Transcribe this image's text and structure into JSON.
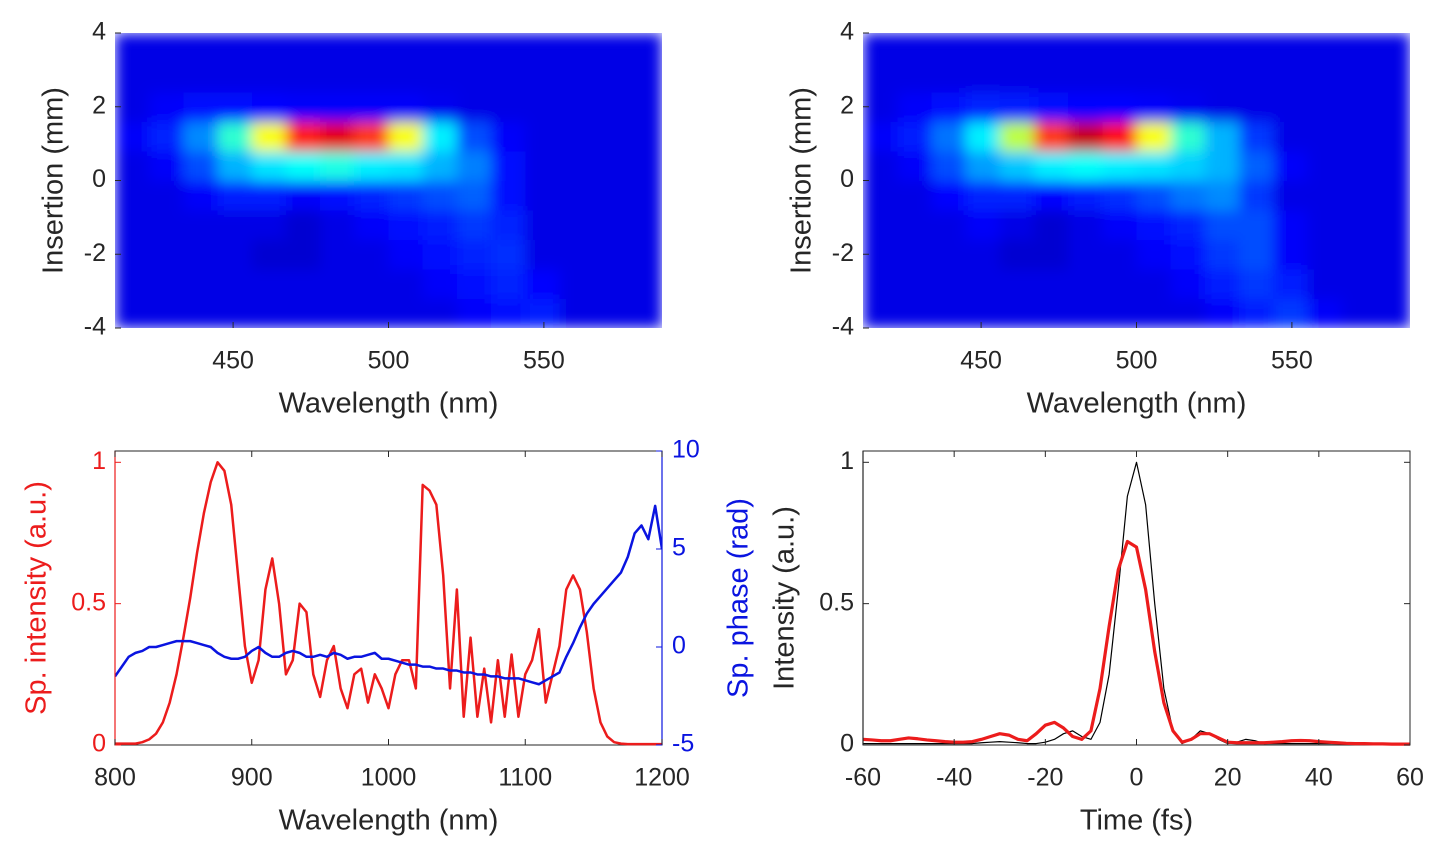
{
  "chart_data": [
    {
      "type": "heatmap",
      "colormap": "jet",
      "xlabel": "Wavelength (nm)",
      "ylabel": "Insertion (mm)",
      "xlim": [
        412,
        588
      ],
      "ylim": [
        -4,
        4
      ],
      "xticks": [
        450,
        500,
        550
      ],
      "yticks": [
        -4,
        -2,
        0,
        2,
        4
      ],
      "xbins": [
        412,
        423,
        434,
        445,
        456,
        467,
        478,
        489,
        500,
        511,
        522,
        533,
        544,
        555,
        566,
        577,
        588
      ],
      "ybins": [
        -4,
        -3.2,
        -2.4,
        -1.6,
        -0.8,
        0,
        0.8,
        1.6,
        2.4,
        3.2,
        4
      ],
      "values": [
        [
          0.1,
          0.1,
          0.1,
          0.1,
          0.1,
          0.1,
          0.1,
          0.1,
          0.1,
          0.1,
          0.12,
          0.14,
          0.15,
          0.1,
          0.1,
          0.1
        ],
        [
          0.1,
          0.1,
          0.1,
          0.1,
          0.1,
          0.1,
          0.1,
          0.1,
          0.1,
          0.12,
          0.14,
          0.16,
          0.13,
          0.1,
          0.1,
          0.1
        ],
        [
          0.1,
          0.1,
          0.1,
          0.1,
          0.08,
          0.08,
          0.1,
          0.1,
          0.12,
          0.14,
          0.16,
          0.17,
          0.1,
          0.1,
          0.1,
          0.1
        ],
        [
          0.1,
          0.1,
          0.1,
          0.1,
          0.1,
          0.08,
          0.1,
          0.12,
          0.14,
          0.15,
          0.18,
          0.16,
          0.1,
          0.1,
          0.1,
          0.1
        ],
        [
          0.1,
          0.1,
          0.12,
          0.15,
          0.15,
          0.12,
          0.14,
          0.16,
          0.18,
          0.2,
          0.22,
          0.14,
          0.1,
          0.1,
          0.1,
          0.1
        ],
        [
          0.1,
          0.12,
          0.2,
          0.3,
          0.35,
          0.38,
          0.4,
          0.36,
          0.35,
          0.3,
          0.25,
          0.14,
          0.1,
          0.1,
          0.1,
          0.1
        ],
        [
          0.12,
          0.16,
          0.26,
          0.42,
          0.62,
          0.85,
          0.9,
          0.82,
          0.62,
          0.36,
          0.2,
          0.12,
          0.1,
          0.1,
          0.1,
          0.1
        ],
        [
          0.1,
          0.12,
          0.14,
          0.14,
          0.13,
          0.12,
          0.12,
          0.12,
          0.12,
          0.11,
          0.1,
          0.1,
          0.1,
          0.1,
          0.1,
          0.1
        ],
        [
          0.1,
          0.1,
          0.1,
          0.1,
          0.1,
          0.1,
          0.1,
          0.1,
          0.1,
          0.1,
          0.1,
          0.1,
          0.1,
          0.1,
          0.1,
          0.1
        ],
        [
          0.1,
          0.1,
          0.1,
          0.1,
          0.1,
          0.1,
          0.1,
          0.1,
          0.1,
          0.1,
          0.1,
          0.1,
          0.1,
          0.1,
          0.1,
          0.1
        ]
      ]
    },
    {
      "type": "heatmap",
      "colormap": "jet",
      "xlabel": "Wavelength (nm)",
      "ylabel": "Insertion (mm)",
      "xlim": [
        412,
        588
      ],
      "ylim": [
        -4,
        4
      ],
      "xticks": [
        450,
        500,
        550
      ],
      "yticks": [
        -4,
        -2,
        0,
        2,
        4
      ],
      "xbins": [
        412,
        423,
        434,
        445,
        456,
        467,
        478,
        489,
        500,
        511,
        522,
        533,
        544,
        555,
        566,
        577,
        588
      ],
      "ybins": [
        -4,
        -3.2,
        -2.4,
        -1.6,
        -0.8,
        0,
        0.8,
        1.6,
        2.4,
        3.2,
        4
      ],
      "values": [
        [
          0.1,
          0.1,
          0.1,
          0.1,
          0.1,
          0.1,
          0.1,
          0.1,
          0.1,
          0.1,
          0.12,
          0.15,
          0.18,
          0.12,
          0.1,
          0.1
        ],
        [
          0.1,
          0.1,
          0.1,
          0.1,
          0.1,
          0.1,
          0.1,
          0.1,
          0.1,
          0.12,
          0.15,
          0.18,
          0.15,
          0.1,
          0.1,
          0.1
        ],
        [
          0.1,
          0.1,
          0.1,
          0.1,
          0.08,
          0.08,
          0.1,
          0.1,
          0.12,
          0.14,
          0.18,
          0.2,
          0.12,
          0.1,
          0.1,
          0.1
        ],
        [
          0.1,
          0.1,
          0.1,
          0.12,
          0.1,
          0.08,
          0.1,
          0.12,
          0.14,
          0.16,
          0.2,
          0.2,
          0.12,
          0.1,
          0.1,
          0.1
        ],
        [
          0.1,
          0.1,
          0.13,
          0.16,
          0.16,
          0.13,
          0.15,
          0.17,
          0.2,
          0.24,
          0.26,
          0.18,
          0.1,
          0.1,
          0.1,
          0.1
        ],
        [
          0.1,
          0.12,
          0.2,
          0.28,
          0.32,
          0.36,
          0.38,
          0.36,
          0.35,
          0.33,
          0.3,
          0.22,
          0.12,
          0.1,
          0.1,
          0.1
        ],
        [
          0.12,
          0.15,
          0.24,
          0.36,
          0.56,
          0.82,
          0.93,
          0.86,
          0.62,
          0.42,
          0.3,
          0.18,
          0.1,
          0.1,
          0.1,
          0.1
        ],
        [
          0.1,
          0.12,
          0.14,
          0.16,
          0.15,
          0.14,
          0.13,
          0.13,
          0.12,
          0.11,
          0.1,
          0.1,
          0.1,
          0.1,
          0.1,
          0.1
        ],
        [
          0.1,
          0.1,
          0.1,
          0.1,
          0.1,
          0.1,
          0.1,
          0.1,
          0.1,
          0.1,
          0.1,
          0.1,
          0.1,
          0.1,
          0.1,
          0.1
        ],
        [
          0.1,
          0.1,
          0.1,
          0.1,
          0.1,
          0.1,
          0.1,
          0.1,
          0.1,
          0.1,
          0.1,
          0.1,
          0.1,
          0.1,
          0.1,
          0.1
        ]
      ]
    },
    {
      "type": "line",
      "xlabel": "Wavelength (nm)",
      "ylabel": "Sp. intensity (a.u.)",
      "y2label": "Sp. phase (rad)",
      "xlim": [
        800,
        1200
      ],
      "ylim": [
        0,
        1.04
      ],
      "y2lim": [
        -5,
        10
      ],
      "xticks": [
        800,
        900,
        1000,
        1100,
        1200
      ],
      "yticks": [
        0,
        0.5,
        1
      ],
      "y2ticks": [
        -5,
        0,
        5,
        10
      ],
      "x": [
        800,
        805,
        810,
        815,
        820,
        825,
        830,
        835,
        840,
        845,
        850,
        855,
        860,
        865,
        870,
        875,
        880,
        885,
        890,
        895,
        900,
        905,
        910,
        915,
        920,
        925,
        930,
        935,
        940,
        945,
        950,
        955,
        960,
        965,
        970,
        975,
        980,
        985,
        990,
        995,
        1000,
        1005,
        1010,
        1015,
        1020,
        1025,
        1030,
        1035,
        1040,
        1045,
        1050,
        1055,
        1060,
        1065,
        1070,
        1075,
        1080,
        1085,
        1090,
        1095,
        1100,
        1105,
        1110,
        1115,
        1120,
        1125,
        1130,
        1135,
        1140,
        1145,
        1150,
        1155,
        1160,
        1165,
        1170,
        1175,
        1180,
        1185,
        1190,
        1195,
        1200
      ],
      "series": [
        {
          "color": "#ec1c1c",
          "linewidth": 2.5,
          "values": [
            0.005,
            0.005,
            0.005,
            0.005,
            0.01,
            0.02,
            0.04,
            0.08,
            0.15,
            0.25,
            0.38,
            0.52,
            0.68,
            0.82,
            0.93,
            1.0,
            0.97,
            0.85,
            0.6,
            0.35,
            0.22,
            0.3,
            0.55,
            0.66,
            0.5,
            0.25,
            0.3,
            0.5,
            0.47,
            0.25,
            0.17,
            0.3,
            0.35,
            0.2,
            0.13,
            0.25,
            0.27,
            0.15,
            0.25,
            0.2,
            0.13,
            0.25,
            0.3,
            0.3,
            0.2,
            0.92,
            0.9,
            0.85,
            0.6,
            0.2,
            0.55,
            0.1,
            0.38,
            0.1,
            0.27,
            0.08,
            0.3,
            0.1,
            0.32,
            0.1,
            0.25,
            0.3,
            0.41,
            0.15,
            0.25,
            0.35,
            0.55,
            0.6,
            0.55,
            0.4,
            0.2,
            0.08,
            0.03,
            0.01,
            0.005,
            0.003,
            0.003,
            0.003,
            0.003,
            0.003,
            0.003
          ]
        },
        {
          "color": "#0a14e0",
          "linewidth": 2.5,
          "axis": "y2",
          "values": [
            -1.5,
            -1,
            -0.5,
            -0.3,
            -0.2,
            0,
            0,
            0.1,
            0.2,
            0.3,
            0.3,
            0.3,
            0.2,
            0.1,
            0,
            -0.3,
            -0.5,
            -0.6,
            -0.6,
            -0.5,
            -0.2,
            0,
            -0.3,
            -0.5,
            -0.5,
            -0.3,
            -0.2,
            -0.3,
            -0.5,
            -0.5,
            -0.4,
            -0.5,
            -0.3,
            -0.4,
            -0.6,
            -0.5,
            -0.5,
            -0.4,
            -0.3,
            -0.6,
            -0.6,
            -0.7,
            -0.8,
            -0.9,
            -0.9,
            -1,
            -1,
            -1.1,
            -1.1,
            -1.2,
            -1.2,
            -1.3,
            -1.3,
            -1.4,
            -1.4,
            -1.5,
            -1.5,
            -1.6,
            -1.6,
            -1.6,
            -1.7,
            -1.8,
            -1.9,
            -1.7,
            -1.5,
            -1.3,
            -0.5,
            0.2,
            1,
            1.7,
            2.2,
            2.6,
            3,
            3.4,
            3.8,
            4.6,
            5.8,
            6.2,
            5.5,
            7.2,
            5
          ]
        }
      ]
    },
    {
      "type": "line",
      "xlabel": "Time (fs)",
      "ylabel": "Intensity (a.u.)",
      "xlim": [
        -60,
        60
      ],
      "ylim": [
        0,
        1.04
      ],
      "xticks": [
        -60,
        -40,
        -20,
        0,
        20,
        40,
        60
      ],
      "yticks": [
        0,
        0.5,
        1
      ],
      "x": [
        -60,
        -58,
        -56,
        -54,
        -52,
        -50,
        -48,
        -46,
        -44,
        -42,
        -40,
        -38,
        -36,
        -34,
        -32,
        -30,
        -28,
        -26,
        -24,
        -22,
        -20,
        -18,
        -16,
        -14,
        -12,
        -10,
        -8,
        -6,
        -4,
        -2,
        0,
        2,
        4,
        6,
        8,
        10,
        12,
        14,
        16,
        18,
        20,
        22,
        24,
        26,
        28,
        30,
        32,
        34,
        36,
        38,
        40,
        42,
        44,
        46,
        48,
        50,
        52,
        54,
        56,
        58,
        60
      ],
      "series": [
        {
          "color": "#000000",
          "linewidth": 1.2,
          "values": [
            0.005,
            0.005,
            0.005,
            0.005,
            0.005,
            0.005,
            0.005,
            0.005,
            0.005,
            0.005,
            0.005,
            0.005,
            0.005,
            0.008,
            0.01,
            0.012,
            0.01,
            0.008,
            0.005,
            0.005,
            0.01,
            0.02,
            0.04,
            0.05,
            0.03,
            0.02,
            0.08,
            0.25,
            0.55,
            0.88,
            1.0,
            0.85,
            0.5,
            0.2,
            0.05,
            0.005,
            0.02,
            0.05,
            0.04,
            0.02,
            0.005,
            0.01,
            0.02,
            0.015,
            0.005,
            0.005,
            0.005,
            0.005,
            0.005,
            0.005,
            0.005,
            0.005,
            0.005,
            0.005,
            0.005,
            0.005,
            0.005,
            0.005,
            0.005,
            0.005,
            0.005
          ]
        },
        {
          "color": "#ec1c1c",
          "linewidth": 3.2,
          "values": [
            0.02,
            0.018,
            0.015,
            0.015,
            0.02,
            0.025,
            0.022,
            0.018,
            0.015,
            0.012,
            0.01,
            0.01,
            0.012,
            0.02,
            0.03,
            0.04,
            0.035,
            0.02,
            0.015,
            0.04,
            0.07,
            0.08,
            0.06,
            0.03,
            0.02,
            0.05,
            0.2,
            0.42,
            0.62,
            0.72,
            0.7,
            0.55,
            0.33,
            0.15,
            0.05,
            0.01,
            0.02,
            0.04,
            0.04,
            0.025,
            0.01,
            0.008,
            0.008,
            0.008,
            0.008,
            0.01,
            0.012,
            0.015,
            0.016,
            0.015,
            0.012,
            0.01,
            0.008,
            0.006,
            0.005,
            0.005,
            0.004,
            0.004,
            0.003,
            0.003,
            0.003
          ]
        }
      ]
    }
  ]
}
